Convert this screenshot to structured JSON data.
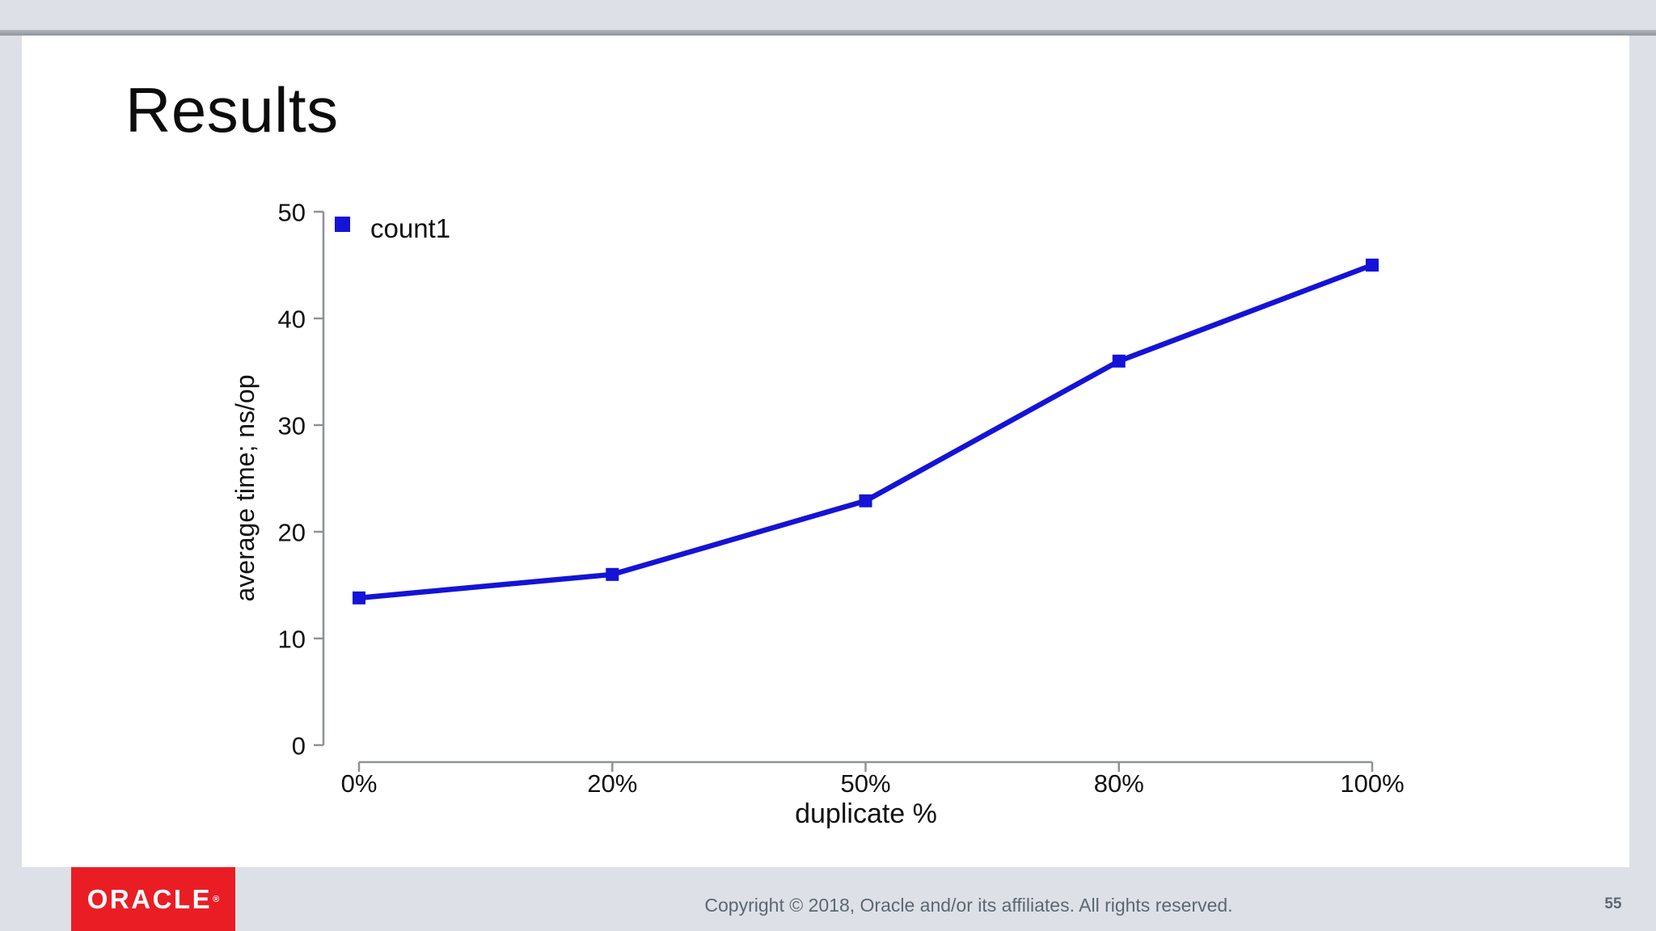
{
  "slide": {
    "title": "Results"
  },
  "chart_data": {
    "type": "line",
    "categories": [
      "0%",
      "20%",
      "50%",
      "80%",
      "100%"
    ],
    "series": [
      {
        "name": "count1",
        "values": [
          13.8,
          16.0,
          22.9,
          36.0,
          45.0
        ]
      }
    ],
    "xlabel": "duplicate %",
    "ylabel": "average time; ns/op",
    "ylim": [
      0,
      50
    ],
    "yticks": [
      0,
      10,
      20,
      30,
      40,
      50
    ],
    "legend": {
      "position": "top-left",
      "entries": [
        "count1"
      ]
    },
    "grid": false,
    "marker": "square"
  },
  "colors": {
    "series_blue": "#1413d7",
    "axis_gray": "#8e9296",
    "text_black": "#111111",
    "oracle_red": "#ea1d25",
    "background_gray": "#dde1e7",
    "footer_text_gray": "#5c6773"
  },
  "footer": {
    "logo_text": "ORACLE",
    "logo_registered": "®",
    "copyright": "Copyright © 2018, Oracle and/or its affiliates. All rights reserved.",
    "page_number": "55"
  }
}
